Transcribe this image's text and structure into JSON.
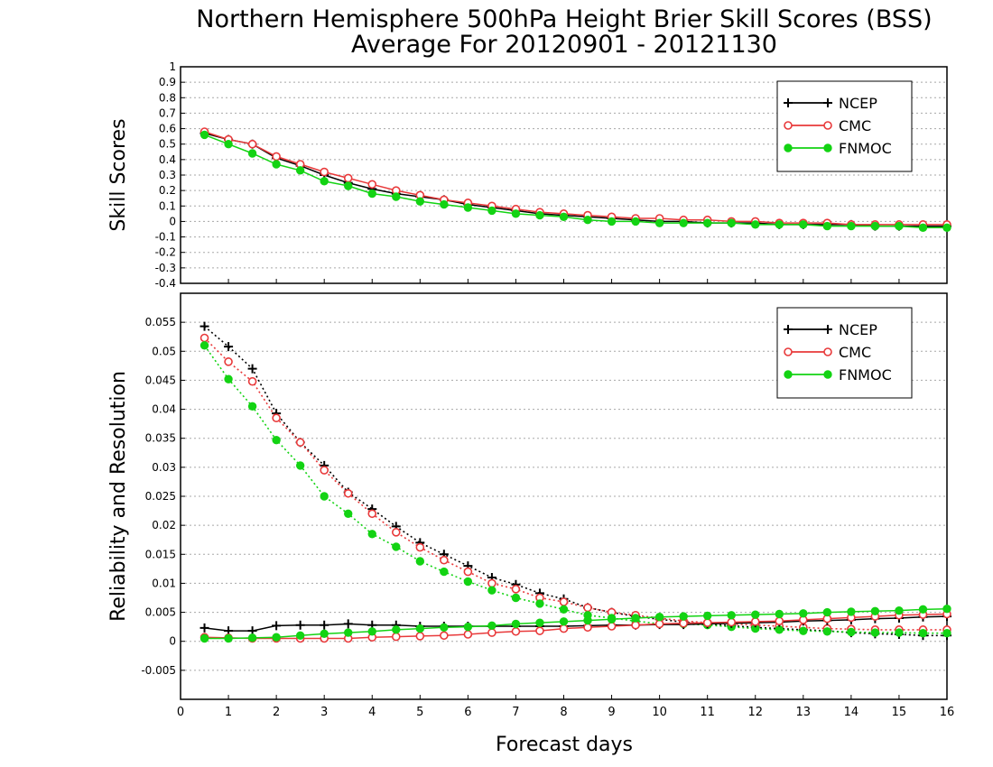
{
  "title": {
    "line1": "Northern Hemisphere 500hPa Height Brier Skill Scores (BSS)",
    "line2": "Average For 20120901 - 20121130"
  },
  "xlabel": "Forecast days",
  "colors": {
    "NCEP": "#000000",
    "CMC": "#e8393a",
    "FNMOC": "#13d313"
  },
  "chart_data": [
    {
      "type": "line",
      "panel": "top",
      "ylabel": "Skill Scores",
      "xlim": [
        0,
        16
      ],
      "ylim": [
        -0.4,
        1
      ],
      "x_ticks": [
        "0",
        "1",
        "2",
        "3",
        "4",
        "5",
        "6",
        "7",
        "8",
        "9",
        "10",
        "11",
        "12",
        "13",
        "14",
        "15",
        "16"
      ],
      "y_ticks": [
        "-0.4",
        "-0.3",
        "-0.2",
        "-0.1",
        "0",
        "0.1",
        "0.2",
        "0.3",
        "0.4",
        "0.5",
        "0.6",
        "0.7",
        "0.8",
        "0.9",
        "1"
      ],
      "grid": true,
      "legend_position": "top-right",
      "x": [
        0.5,
        1,
        1.5,
        2,
        2.5,
        3,
        3.5,
        4,
        4.5,
        5,
        5.5,
        6,
        6.5,
        7,
        7.5,
        8,
        8.5,
        9,
        9.5,
        10,
        10.5,
        11,
        11.5,
        12,
        12.5,
        13,
        13.5,
        14,
        14.5,
        15,
        15.5,
        16
      ],
      "series": [
        {
          "name": "NCEP",
          "marker": "plus",
          "style": "solid",
          "values": [
            0.57,
            0.53,
            0.5,
            0.41,
            0.36,
            0.3,
            0.25,
            0.21,
            0.18,
            0.16,
            0.14,
            0.11,
            0.09,
            0.07,
            0.05,
            0.04,
            0.03,
            0.02,
            0.01,
            0.0,
            0.0,
            -0.01,
            -0.01,
            -0.01,
            -0.02,
            -0.02,
            -0.02,
            -0.02,
            -0.03,
            -0.03,
            -0.03,
            -0.03
          ]
        },
        {
          "name": "CMC",
          "marker": "open-circle",
          "style": "solid",
          "values": [
            0.58,
            0.53,
            0.5,
            0.42,
            0.37,
            0.32,
            0.28,
            0.24,
            0.2,
            0.17,
            0.14,
            0.12,
            0.1,
            0.08,
            0.06,
            0.05,
            0.04,
            0.03,
            0.02,
            0.02,
            0.01,
            0.01,
            0.0,
            0.0,
            -0.01,
            -0.01,
            -0.01,
            -0.02,
            -0.02,
            -0.02,
            -0.02,
            -0.02
          ]
        },
        {
          "name": "FNMOC",
          "marker": "filled-circle",
          "style": "solid",
          "values": [
            0.56,
            0.5,
            0.44,
            0.37,
            0.33,
            0.26,
            0.23,
            0.18,
            0.16,
            0.13,
            0.11,
            0.09,
            0.07,
            0.05,
            0.04,
            0.03,
            0.01,
            0.0,
            0.0,
            -0.01,
            -0.01,
            -0.01,
            -0.01,
            -0.02,
            -0.02,
            -0.02,
            -0.03,
            -0.03,
            -0.03,
            -0.03,
            -0.04,
            -0.04
          ]
        }
      ]
    },
    {
      "type": "line",
      "panel": "bottom",
      "ylabel": "Reliability and Resolution",
      "xlim": [
        0,
        16
      ],
      "ylim": [
        -0.01,
        0.06
      ],
      "x_ticks": [
        "0",
        "1",
        "2",
        "3",
        "4",
        "5",
        "6",
        "7",
        "8",
        "9",
        "10",
        "11",
        "12",
        "13",
        "14",
        "15",
        "16"
      ],
      "y_ticks": [
        "-0.005",
        "0",
        "0.005",
        "0.01",
        "0.015",
        "0.02",
        "0.025",
        "0.03",
        "0.035",
        "0.04",
        "0.045",
        "0.05",
        "0.055"
      ],
      "grid": true,
      "legend_position": "top-right",
      "x": [
        0.5,
        1,
        1.5,
        2,
        2.5,
        3,
        3.5,
        4,
        4.5,
        5,
        5.5,
        6,
        6.5,
        7,
        7.5,
        8,
        8.5,
        9,
        9.5,
        10,
        10.5,
        11,
        11.5,
        12,
        12.5,
        13,
        13.5,
        14,
        14.5,
        15,
        15.5,
        16
      ],
      "resolution_series": [
        {
          "name": "NCEP",
          "marker": "plus",
          "style": "dotted",
          "values": [
            0.0543,
            0.0508,
            0.047,
            0.0393,
            0.0343,
            0.0303,
            0.0257,
            0.0228,
            0.0198,
            0.017,
            0.015,
            0.013,
            0.011,
            0.0098,
            0.0083,
            0.0073,
            0.0058,
            0.005,
            0.0043,
            0.0038,
            0.0033,
            0.003,
            0.0027,
            0.0024,
            0.0022,
            0.002,
            0.0018,
            0.0015,
            0.0013,
            0.0012,
            0.001,
            0.001
          ]
        },
        {
          "name": "CMC",
          "marker": "open-circle",
          "style": "dotted",
          "values": [
            0.0523,
            0.0482,
            0.0448,
            0.0385,
            0.0343,
            0.0295,
            0.0255,
            0.022,
            0.0188,
            0.0162,
            0.014,
            0.012,
            0.01,
            0.009,
            0.0075,
            0.0068,
            0.0058,
            0.005,
            0.0045,
            0.004,
            0.0035,
            0.0032,
            0.003,
            0.0028,
            0.0026,
            0.0024,
            0.0022,
            0.0021,
            0.002,
            0.002,
            0.002,
            0.002
          ]
        },
        {
          "name": "FNMOC",
          "marker": "filled-circle",
          "style": "dotted",
          "values": [
            0.051,
            0.0452,
            0.0405,
            0.0347,
            0.0303,
            0.025,
            0.022,
            0.0185,
            0.0163,
            0.0138,
            0.012,
            0.0103,
            0.0088,
            0.0075,
            0.0065,
            0.0055,
            0.0045,
            0.004,
            0.0035,
            0.003,
            0.003,
            0.0028,
            0.0025,
            0.0022,
            0.002,
            0.0018,
            0.0017,
            0.0016,
            0.0015,
            0.0015,
            0.0014,
            0.0014
          ]
        }
      ],
      "reliability_series": [
        {
          "name": "NCEP",
          "marker": "plus",
          "style": "solid",
          "values": [
            0.0023,
            0.0018,
            0.0018,
            0.0027,
            0.0028,
            0.0028,
            0.003,
            0.0028,
            0.0028,
            0.0026,
            0.0026,
            0.0026,
            0.0026,
            0.0026,
            0.0026,
            0.0026,
            0.0027,
            0.0028,
            0.0028,
            0.0029,
            0.0029,
            0.003,
            0.0031,
            0.0032,
            0.0033,
            0.0035,
            0.0036,
            0.0037,
            0.0039,
            0.004,
            0.0042,
            0.0043
          ]
        },
        {
          "name": "CMC",
          "marker": "open-circle",
          "style": "solid",
          "values": [
            0.0007,
            0.0006,
            0.0005,
            0.0005,
            0.0005,
            0.0005,
            0.0005,
            0.0007,
            0.0008,
            0.0009,
            0.001,
            0.0012,
            0.0015,
            0.0017,
            0.0018,
            0.0022,
            0.0024,
            0.0026,
            0.0028,
            0.003,
            0.0031,
            0.0032,
            0.0033,
            0.0034,
            0.0035,
            0.0037,
            0.0039,
            0.0041,
            0.0043,
            0.0045,
            0.0046,
            0.0047
          ]
        },
        {
          "name": "FNMOC",
          "marker": "filled-circle",
          "style": "solid",
          "values": [
            0.0005,
            0.0005,
            0.0006,
            0.0007,
            0.001,
            0.0013,
            0.0015,
            0.0017,
            0.002,
            0.0022,
            0.0024,
            0.0025,
            0.0027,
            0.003,
            0.0032,
            0.0034,
            0.0036,
            0.0038,
            0.004,
            0.0042,
            0.0043,
            0.0044,
            0.0045,
            0.0046,
            0.0047,
            0.0048,
            0.005,
            0.0051,
            0.0052,
            0.0053,
            0.0055,
            0.0056
          ]
        }
      ]
    }
  ]
}
